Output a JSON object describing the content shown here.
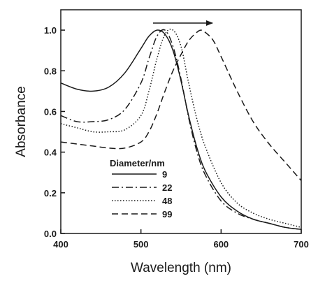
{
  "chart_data": {
    "type": "line",
    "title": "",
    "xlabel": "Wavelength (nm)",
    "ylabel": "Absorbance",
    "xlim": [
      400,
      700
    ],
    "ylim": [
      0.0,
      1.1
    ],
    "x_ticks": [
      400,
      500,
      600,
      700
    ],
    "y_ticks": [
      "0.0",
      "0.2",
      "0.4",
      "0.6",
      "0.8",
      "1.0"
    ],
    "grid": false,
    "legend": {
      "title": "Diameter/nm",
      "placement": "bottom-center"
    },
    "annotation": "arrow-right",
    "series": [
      {
        "name": "9",
        "style": "solid",
        "x": [
          400,
          420,
          440,
          460,
          480,
          500,
          510,
          520,
          530,
          540,
          550,
          560,
          570,
          580,
          600,
          620,
          640,
          660,
          680,
          700
        ],
        "y": [
          0.74,
          0.71,
          0.7,
          0.72,
          0.79,
          0.91,
          0.97,
          1.0,
          0.98,
          0.9,
          0.75,
          0.57,
          0.42,
          0.31,
          0.18,
          0.11,
          0.07,
          0.05,
          0.03,
          0.02
        ]
      },
      {
        "name": "22",
        "style": "dashdot",
        "x": [
          400,
          420,
          440,
          460,
          480,
          500,
          510,
          520,
          530,
          540,
          550,
          560,
          570,
          580,
          600,
          620,
          640,
          660,
          680,
          700
        ],
        "y": [
          0.58,
          0.55,
          0.55,
          0.56,
          0.61,
          0.74,
          0.86,
          0.97,
          1.0,
          0.92,
          0.76,
          0.56,
          0.4,
          0.29,
          0.16,
          0.1,
          0.07,
          0.05,
          0.03,
          0.02
        ]
      },
      {
        "name": "48",
        "style": "dotted",
        "x": [
          400,
          420,
          440,
          460,
          480,
          500,
          510,
          520,
          530,
          540,
          550,
          560,
          570,
          580,
          600,
          620,
          640,
          660,
          680,
          700
        ],
        "y": [
          0.54,
          0.52,
          0.5,
          0.5,
          0.51,
          0.58,
          0.7,
          0.86,
          0.98,
          1.0,
          0.92,
          0.73,
          0.56,
          0.43,
          0.25,
          0.15,
          0.1,
          0.07,
          0.05,
          0.03
        ]
      },
      {
        "name": "99",
        "style": "dashed",
        "x": [
          400,
          420,
          440,
          460,
          480,
          500,
          510,
          520,
          530,
          540,
          550,
          560,
          570,
          575,
          580,
          590,
          600,
          620,
          640,
          660,
          680,
          700
        ],
        "y": [
          0.45,
          0.44,
          0.43,
          0.42,
          0.42,
          0.45,
          0.5,
          0.59,
          0.7,
          0.8,
          0.88,
          0.95,
          0.99,
          1.0,
          0.99,
          0.95,
          0.87,
          0.7,
          0.55,
          0.44,
          0.35,
          0.26
        ]
      }
    ]
  }
}
